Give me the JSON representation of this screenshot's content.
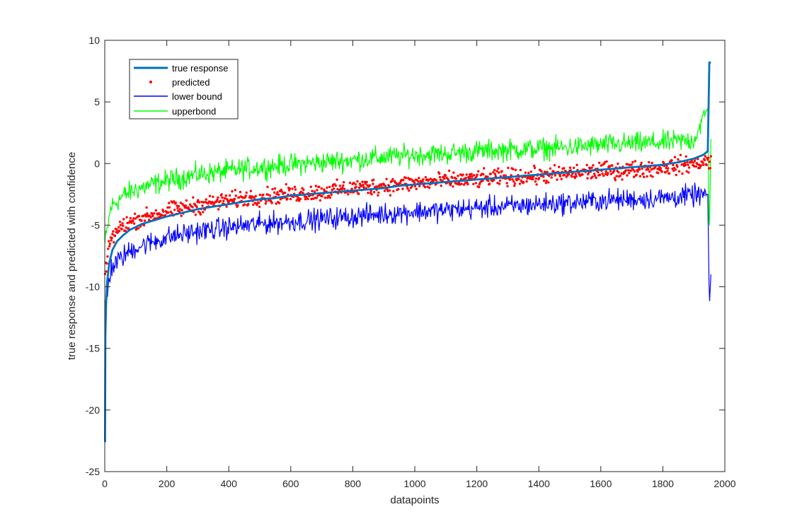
{
  "chart_data": {
    "type": "line",
    "title": "",
    "xlabel": "datapoints",
    "ylabel": "true response and predicted with confidence",
    "xlim": [
      0,
      2000
    ],
    "ylim": [
      -25,
      10
    ],
    "xticks": [
      "0",
      "200",
      "400",
      "600",
      "800",
      "1000",
      "1200",
      "1400",
      "1600",
      "1800",
      "2000"
    ],
    "yticks": [
      "10",
      "5",
      "0",
      "-5",
      "-10",
      "-15",
      "-20",
      "-25"
    ],
    "grid": false,
    "legend_position": "top-left",
    "n_points": 1955,
    "series": [
      {
        "name": "true response",
        "style": "line",
        "color": "#0072BD",
        "points": [
          [
            1,
            -22.6
          ],
          [
            2,
            -14
          ],
          [
            4,
            -11.5
          ],
          [
            8,
            -9.5
          ],
          [
            15,
            -8
          ],
          [
            25,
            -7
          ],
          [
            40,
            -6.3
          ],
          [
            60,
            -5.8
          ],
          [
            80,
            -5.4
          ],
          [
            120,
            -4.9
          ],
          [
            160,
            -4.6
          ],
          [
            200,
            -4.3
          ],
          [
            250,
            -4.0
          ],
          [
            300,
            -3.7
          ],
          [
            350,
            -3.5
          ],
          [
            400,
            -3.3
          ],
          [
            450,
            -3.1
          ],
          [
            500,
            -2.9
          ],
          [
            550,
            -2.8
          ],
          [
            600,
            -2.6
          ],
          [
            650,
            -2.5
          ],
          [
            700,
            -2.4
          ],
          [
            750,
            -2.3
          ],
          [
            800,
            -2.2
          ],
          [
            850,
            -2.1
          ],
          [
            900,
            -2.0
          ],
          [
            950,
            -1.8
          ],
          [
            1000,
            -1.7
          ],
          [
            1050,
            -1.6
          ],
          [
            1100,
            -1.5
          ],
          [
            1150,
            -1.4
          ],
          [
            1200,
            -1.3
          ],
          [
            1250,
            -1.2
          ],
          [
            1300,
            -1.1
          ],
          [
            1350,
            -1.0
          ],
          [
            1400,
            -0.9
          ],
          [
            1450,
            -0.8
          ],
          [
            1500,
            -0.7
          ],
          [
            1550,
            -0.6
          ],
          [
            1600,
            -0.5
          ],
          [
            1650,
            -0.4
          ],
          [
            1700,
            -0.3
          ],
          [
            1750,
            -0.2
          ],
          [
            1800,
            -0.1
          ],
          [
            1850,
            0.1
          ],
          [
            1900,
            0.4
          ],
          [
            1930,
            0.7
          ],
          [
            1945,
            1.0
          ],
          [
            1950,
            8.2
          ],
          [
            1955,
            8.2
          ]
        ]
      },
      {
        "name": "predicted",
        "style": "markers",
        "color": "#FF0000",
        "trend": [
          [
            1,
            -9.0
          ],
          [
            20,
            -6.0
          ],
          [
            60,
            -5.0
          ],
          [
            100,
            -4.6
          ],
          [
            200,
            -3.9
          ],
          [
            300,
            -3.4
          ],
          [
            400,
            -3.0
          ],
          [
            500,
            -2.7
          ],
          [
            600,
            -2.5
          ],
          [
            700,
            -2.3
          ],
          [
            800,
            -2.0
          ],
          [
            900,
            -1.8
          ],
          [
            1000,
            -1.6
          ],
          [
            1100,
            -1.4
          ],
          [
            1200,
            -1.3
          ],
          [
            1300,
            -1.1
          ],
          [
            1400,
            -1.0
          ],
          [
            1500,
            -0.8
          ],
          [
            1600,
            -0.6
          ],
          [
            1700,
            -0.5
          ],
          [
            1800,
            -0.3
          ],
          [
            1900,
            0.0
          ],
          [
            1955,
            0.2
          ]
        ],
        "spread": 1.0
      },
      {
        "name": "lower bound",
        "style": "line",
        "color": "#0000FF",
        "trend": [
          [
            1,
            -11.5
          ],
          [
            20,
            -8.5
          ],
          [
            60,
            -7.5
          ],
          [
            100,
            -6.8
          ],
          [
            200,
            -6.0
          ],
          [
            300,
            -5.5
          ],
          [
            400,
            -5.2
          ],
          [
            500,
            -4.9
          ],
          [
            600,
            -4.7
          ],
          [
            700,
            -4.5
          ],
          [
            800,
            -4.3
          ],
          [
            900,
            -4.1
          ],
          [
            1000,
            -3.9
          ],
          [
            1100,
            -3.8
          ],
          [
            1200,
            -3.6
          ],
          [
            1300,
            -3.5
          ],
          [
            1400,
            -3.3
          ],
          [
            1500,
            -3.2
          ],
          [
            1600,
            -3.0
          ],
          [
            1700,
            -2.9
          ],
          [
            1800,
            -2.8
          ],
          [
            1900,
            -2.6
          ],
          [
            1945,
            -2.5
          ],
          [
            1950,
            -11.7
          ],
          [
            1955,
            -9.0
          ]
        ],
        "spread": 1.3
      },
      {
        "name": "upperbond",
        "style": "line",
        "color": "#00FF00",
        "trend": [
          [
            1,
            -6.5
          ],
          [
            20,
            -3.5
          ],
          [
            60,
            -2.6
          ],
          [
            100,
            -2.1
          ],
          [
            200,
            -1.4
          ],
          [
            300,
            -0.9
          ],
          [
            400,
            -0.6
          ],
          [
            500,
            -0.3
          ],
          [
            600,
            -0.1
          ],
          [
            700,
            0.1
          ],
          [
            800,
            0.3
          ],
          [
            900,
            0.5
          ],
          [
            1000,
            0.7
          ],
          [
            1100,
            0.8
          ],
          [
            1200,
            1.0
          ],
          [
            1300,
            1.1
          ],
          [
            1400,
            1.2
          ],
          [
            1500,
            1.3
          ],
          [
            1600,
            1.5
          ],
          [
            1700,
            1.6
          ],
          [
            1800,
            1.7
          ],
          [
            1900,
            1.9
          ],
          [
            1945,
            4.5
          ],
          [
            1950,
            -6.8
          ],
          [
            1955,
            2.0
          ]
        ],
        "spread": 1.3
      }
    ]
  }
}
